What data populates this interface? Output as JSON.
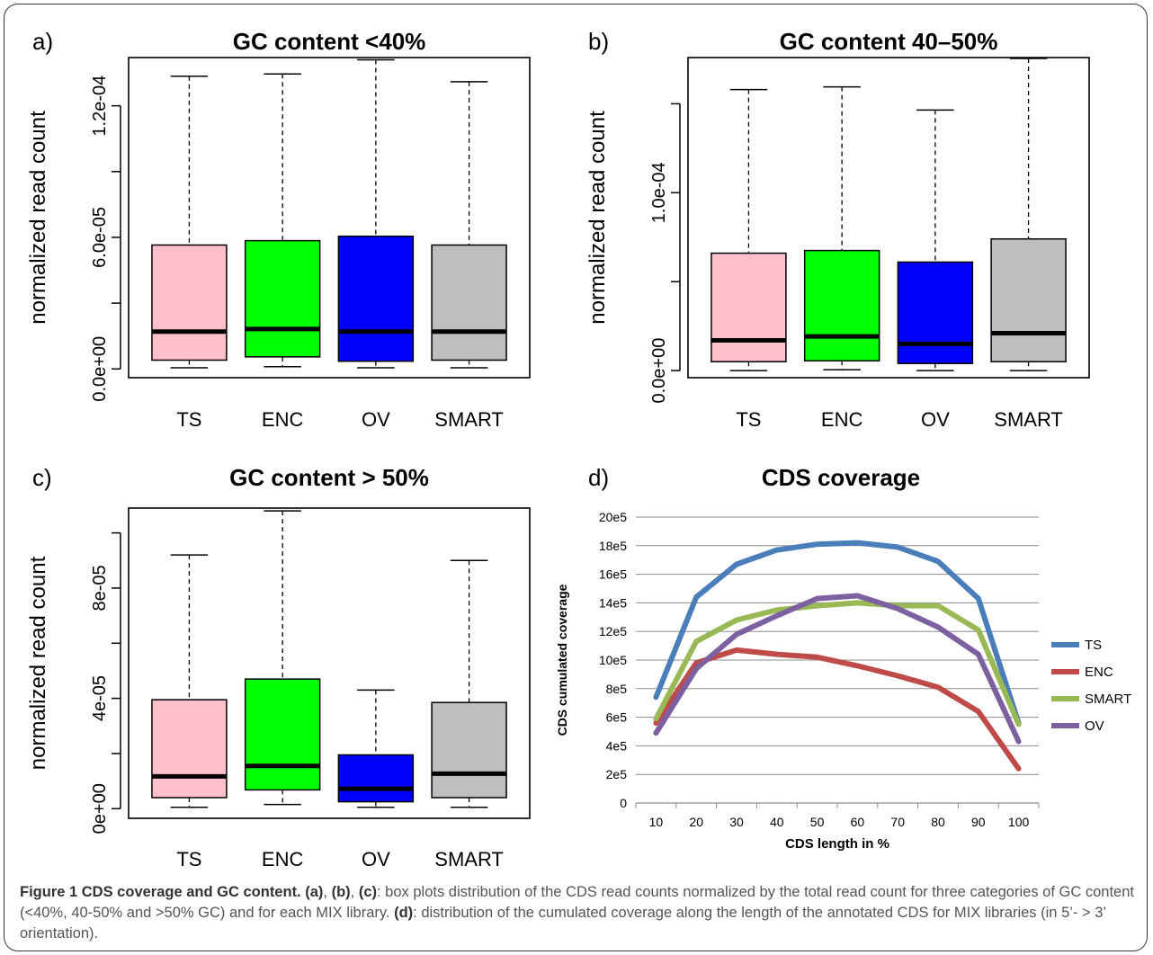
{
  "panels": [
    {
      "letter": "a)",
      "chart_data": {
        "type": "boxplot",
        "title": "GC content <40%",
        "ylabel": "normalized read count",
        "categories": [
          "TS",
          "ENC",
          "OV",
          "SMART"
        ],
        "colors": [
          "#ffc0cb",
          "#00ff00",
          "#0000ff",
          "#bebebe"
        ],
        "ylim": [
          -4e-06,
          0.000142
        ],
        "yticks": [
          0,
          3e-05,
          6e-05,
          9e-05,
          0.00012
        ],
        "ytick_labels": [
          "0.0e+00",
          "",
          "6.0e-05",
          "",
          "1.2e-04"
        ],
        "boxes": [
          {
            "whisker_low": 5e-07,
            "q1": 4e-06,
            "median": 1.7e-05,
            "q3": 5.65e-05,
            "whisker_high": 0.0001335
          },
          {
            "whisker_low": 1e-06,
            "q1": 5.5e-06,
            "median": 1.82e-05,
            "q3": 5.85e-05,
            "whisker_high": 0.0001345
          },
          {
            "whisker_low": 5e-07,
            "q1": 3.5e-06,
            "median": 1.7e-05,
            "q3": 6.05e-05,
            "whisker_high": 0.000141
          },
          {
            "whisker_low": 5e-07,
            "q1": 4e-06,
            "median": 1.7e-05,
            "q3": 5.65e-05,
            "whisker_high": 0.000131
          }
        ]
      }
    },
    {
      "letter": "b)",
      "chart_data": {
        "type": "boxplot",
        "title": "GC content 40–50%",
        "ylabel": "normalized read count",
        "categories": [
          "TS",
          "ENC",
          "OV",
          "SMART"
        ],
        "colors": [
          "#ffc0cb",
          "#00ff00",
          "#0000ff",
          "#bebebe"
        ],
        "ylim": [
          -4e-06,
          0.000176
        ],
        "yticks": [
          0,
          5e-05,
          0.0001,
          0.00015
        ],
        "ytick_labels": [
          "0.0e+00",
          "",
          "1.0e-04",
          ""
        ],
        "boxes": [
          {
            "whisker_low": 0,
            "q1": 5e-06,
            "median": 1.7e-05,
            "q3": 6.6e-05,
            "whisker_high": 0.000158
          },
          {
            "whisker_low": 5e-07,
            "q1": 5.5e-06,
            "median": 1.92e-05,
            "q3": 6.75e-05,
            "whisker_high": 0.0001595
          },
          {
            "whisker_low": 0,
            "q1": 4e-06,
            "median": 1.5e-05,
            "q3": 6.1e-05,
            "whisker_high": 0.0001465
          },
          {
            "whisker_low": 0,
            "q1": 5e-06,
            "median": 2.1e-05,
            "q3": 7.4e-05,
            "whisker_high": 0.0001755
          }
        ]
      }
    },
    {
      "letter": "c)",
      "chart_data": {
        "type": "boxplot",
        "title": "GC content > 50%",
        "ylabel": "normalized read count",
        "categories": [
          "TS",
          "ENC",
          "OV",
          "SMART"
        ],
        "colors": [
          "#ffc0cb",
          "#00ff00",
          "#0000ff",
          "#bebebe"
        ],
        "ylim": [
          -3.5e-06,
          0.000109
        ],
        "yticks": [
          0,
          2e-05,
          4e-05,
          6e-05,
          8e-05,
          0.0001
        ],
        "ytick_labels": [
          "0e+00",
          "",
          "4e-05",
          "",
          "8e-05",
          ""
        ],
        "boxes": [
          {
            "whisker_low": 5e-07,
            "q1": 4e-06,
            "median": 1.17e-05,
            "q3": 3.95e-05,
            "whisker_high": 9.2e-05
          },
          {
            "whisker_low": 1.5e-06,
            "q1": 6.8e-06,
            "median": 1.55e-05,
            "q3": 4.7e-05,
            "whisker_high": 0.000108
          },
          {
            "whisker_low": 5e-07,
            "q1": 2.5e-06,
            "median": 7.2e-06,
            "q3": 1.95e-05,
            "whisker_high": 4.3e-05
          },
          {
            "whisker_low": 5e-07,
            "q1": 4e-06,
            "median": 1.27e-05,
            "q3": 3.85e-05,
            "whisker_high": 9e-05
          }
        ]
      }
    }
  ],
  "line_panel": {
    "letter": "d)",
    "chart_data": {
      "type": "line",
      "title": "CDS coverage",
      "xlabel": "CDS length in %",
      "ylabel": "CDS cumulated coverage",
      "x": [
        10,
        20,
        30,
        40,
        50,
        60,
        70,
        80,
        90,
        100
      ],
      "ylim": [
        0,
        20
      ],
      "y_unit": "e5",
      "ytick_labels": [
        "0",
        "2e5",
        "4e5",
        "6e5",
        "8e5",
        "10e5",
        "12e5",
        "14e5",
        "16e5",
        "18e5",
        "20e5"
      ],
      "grid": true,
      "legend_position": "right",
      "series": [
        {
          "name": "TS",
          "color": "#4a7ebb",
          "values": [
            7.4,
            14.4,
            16.7,
            17.7,
            18.1,
            18.2,
            17.9,
            16.9,
            14.3,
            5.6
          ]
        },
        {
          "name": "ENC",
          "color": "#be4b48",
          "values": [
            5.6,
            9.8,
            10.7,
            10.4,
            10.2,
            9.6,
            8.9,
            8.1,
            6.4,
            2.4
          ]
        },
        {
          "name": "SMART",
          "color": "#98b954",
          "values": [
            5.9,
            11.3,
            12.8,
            13.5,
            13.8,
            14.0,
            13.8,
            13.8,
            12.1,
            5.5
          ]
        },
        {
          "name": "OV",
          "color": "#7d60a0",
          "values": [
            4.9,
            9.4,
            11.8,
            13.1,
            14.3,
            14.5,
            13.6,
            12.3,
            10.4,
            4.3
          ]
        }
      ]
    }
  },
  "caption": {
    "bold": "Figure 1 CDS coverage and GC content. (a)",
    "t1": ", ",
    "b1": "(b)",
    "t2": ", ",
    "b2": "(c)",
    "t3": ": box plots distribution of the CDS read counts normalized by the total read count for three categories of GC content (<40%, 40-50% and >50% GC) and for each MIX library. ",
    "b3": "(d)",
    "t4": ": distribution of the cumulated coverage along the length of the annotated CDS for MIX libraries (in 5’- > 3’ orientation)."
  }
}
